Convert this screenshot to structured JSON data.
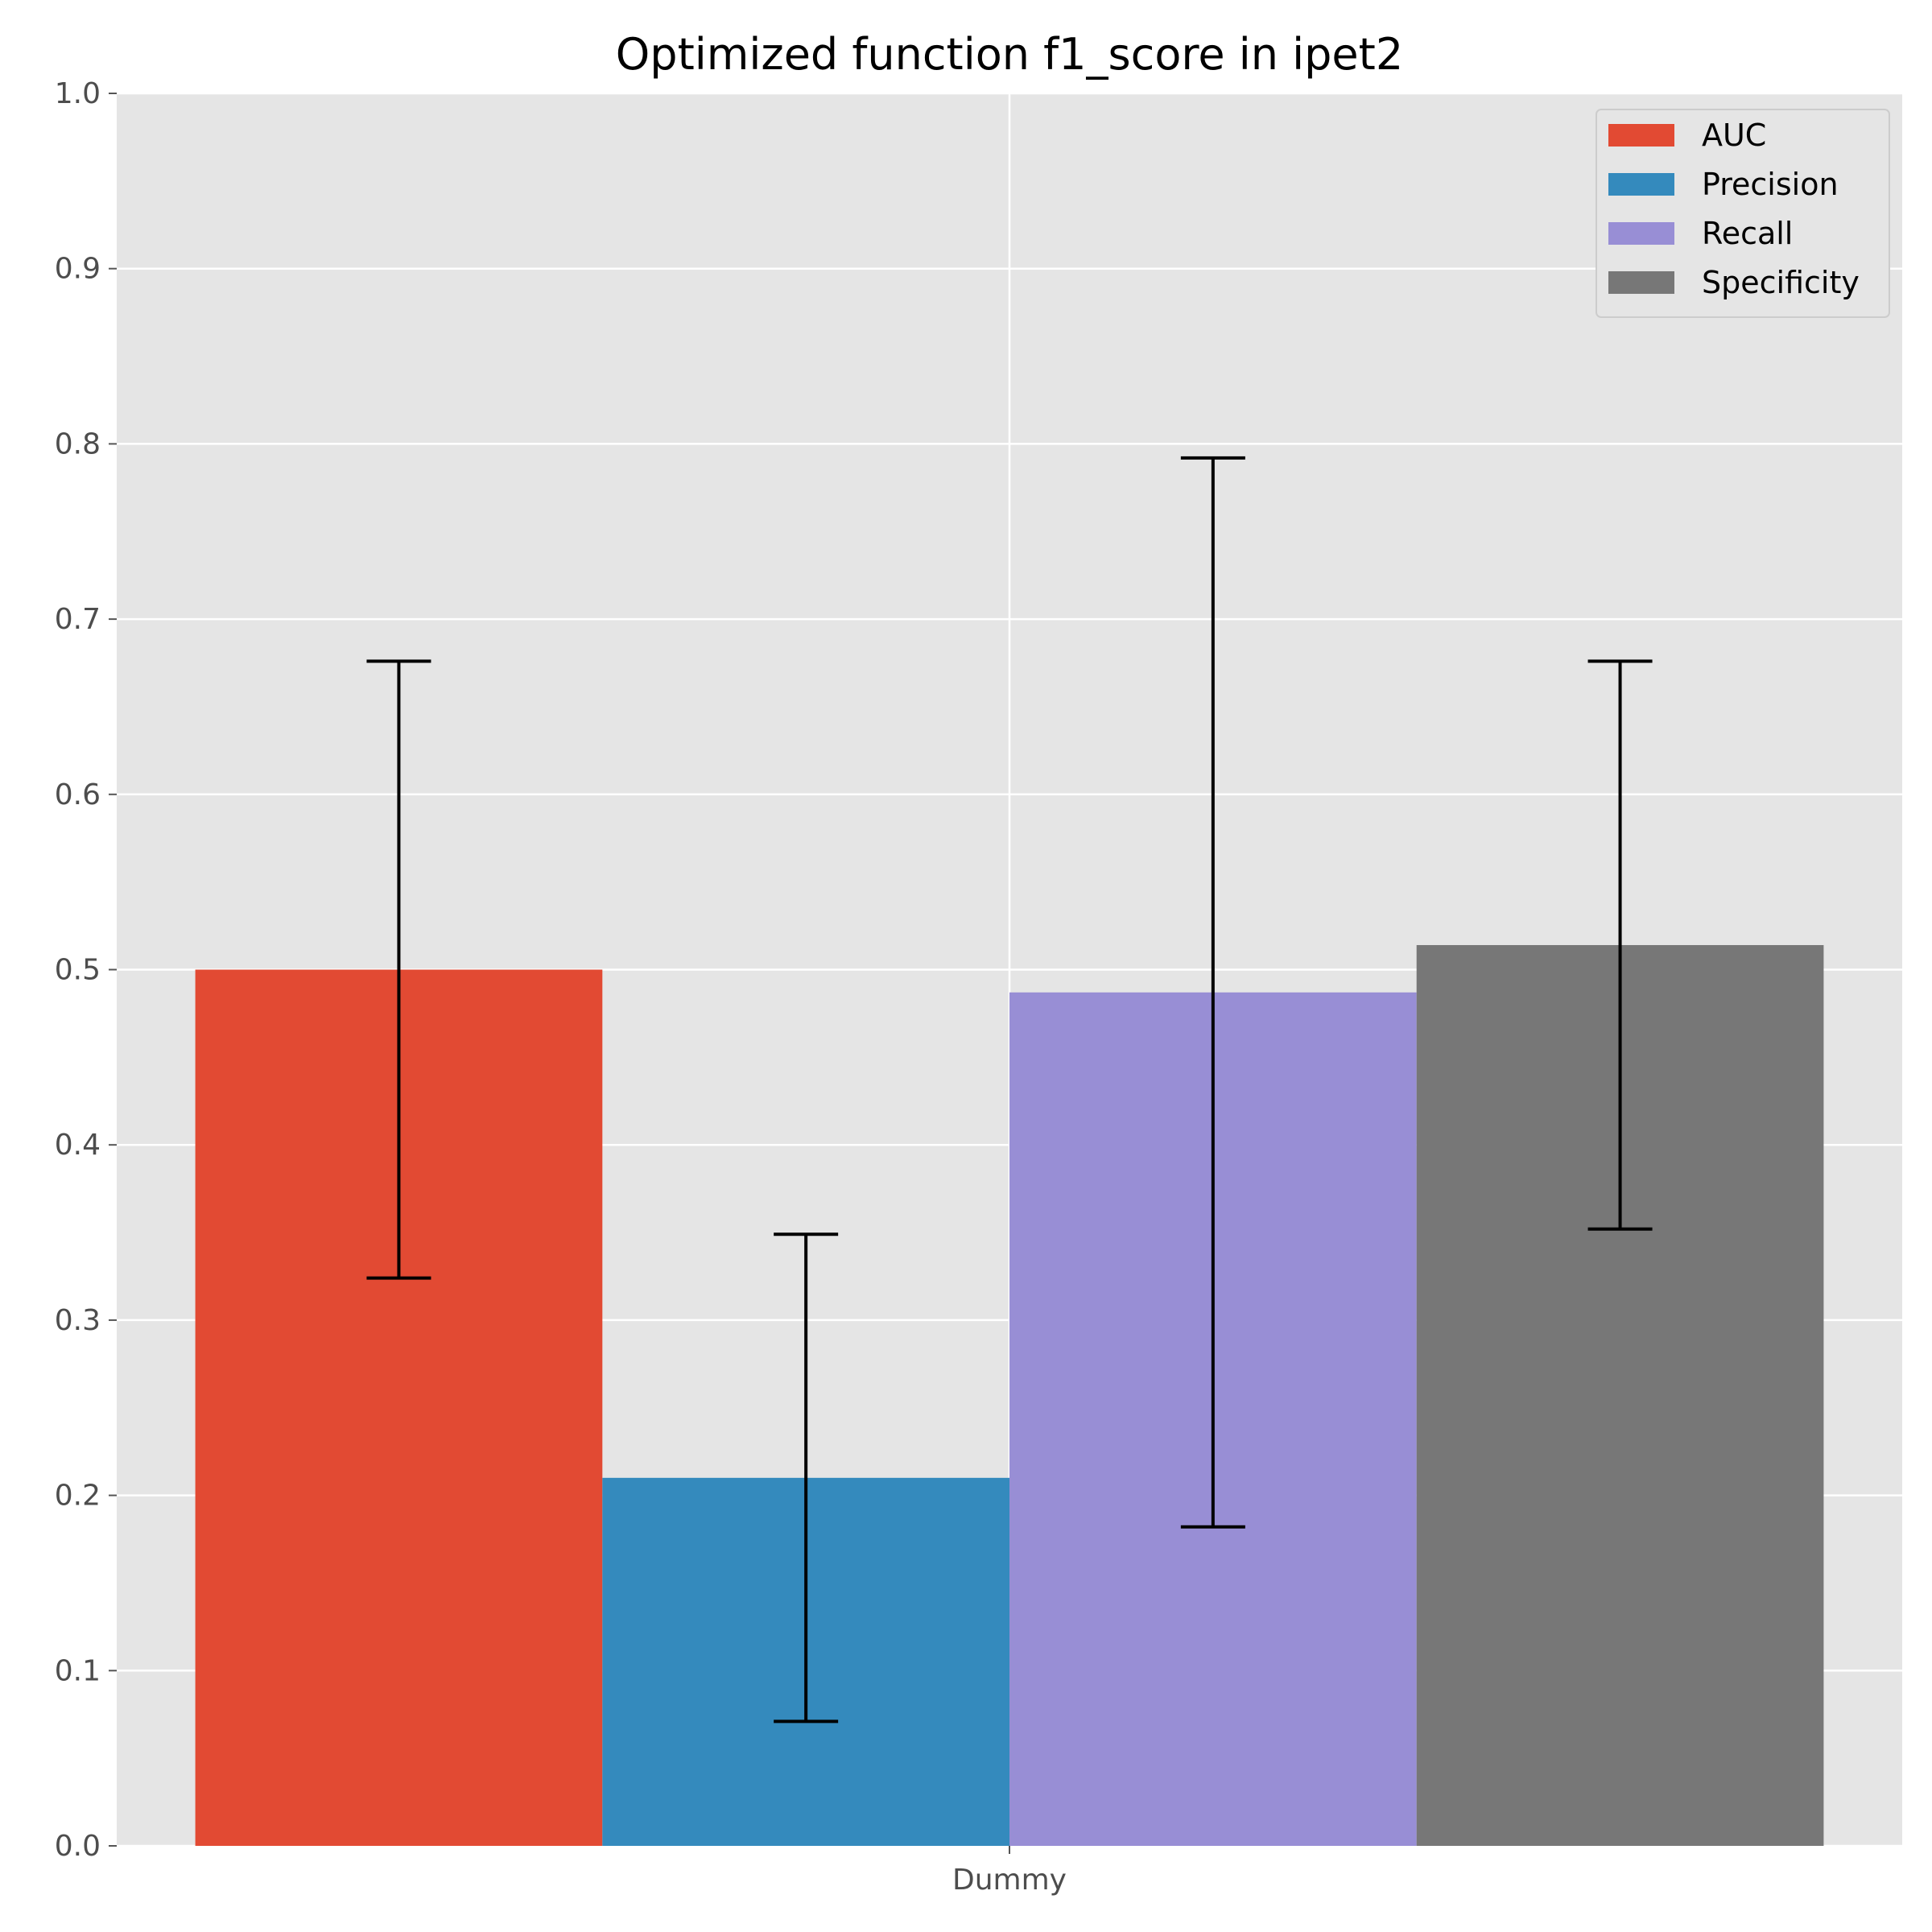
{
  "chart_data": {
    "type": "bar",
    "title": "Optimized function f1_score in ipet2",
    "xlabel": "",
    "ylabel": "",
    "categories": [
      "Dummy"
    ],
    "ylim": [
      0,
      1.0
    ],
    "yticks": [
      "0.0",
      "0.1",
      "0.2",
      "0.3",
      "0.4",
      "0.5",
      "0.6",
      "0.7",
      "0.8",
      "0.9",
      "1.0"
    ],
    "grid": true,
    "legend_position": "top-right",
    "series": [
      {
        "name": "AUC",
        "color": "#E24A33",
        "values": [
          0.5
        ],
        "error": [
          0.176
        ]
      },
      {
        "name": "Precision",
        "color": "#348ABD",
        "values": [
          0.21
        ],
        "error": [
          0.139
        ]
      },
      {
        "name": "Recall",
        "color": "#988ED5",
        "values": [
          0.487
        ],
        "error": [
          0.305
        ]
      },
      {
        "name": "Specificity",
        "color": "#777777",
        "values": [
          0.514
        ],
        "error": [
          0.162
        ]
      }
    ]
  }
}
